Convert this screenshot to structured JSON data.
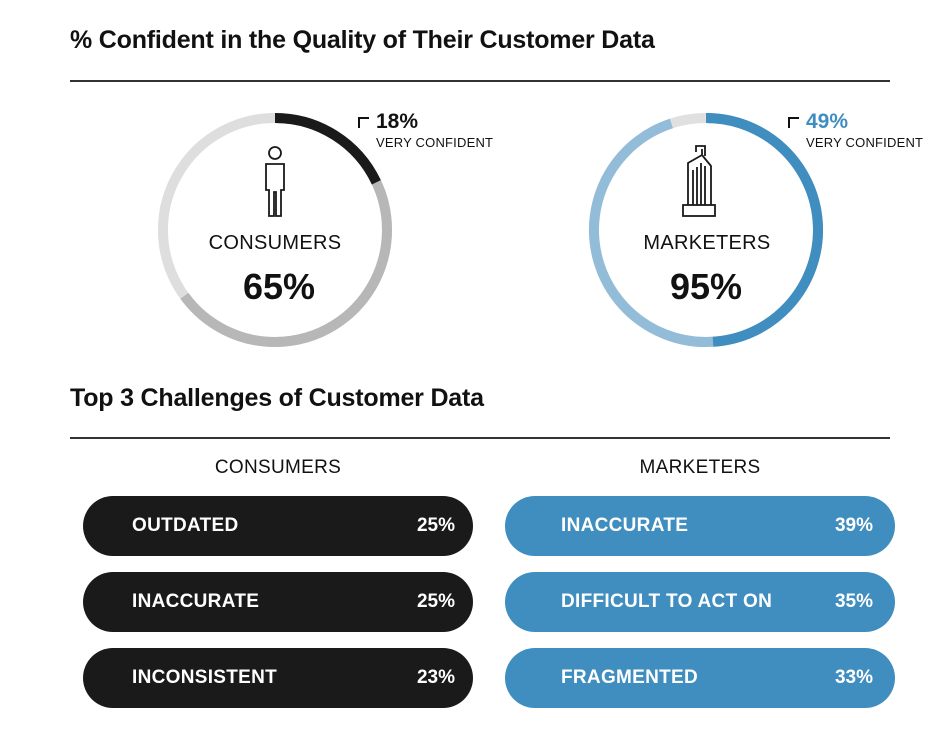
{
  "title": "% Confident in the Quality of Their Customer Data",
  "subtitle": "Top 3 Challenges of Customer Data",
  "colors": {
    "consumer_track": "#dedede",
    "consumer_fill": "#b7b7b7",
    "consumer_very": "#1a1a1a",
    "marketer_track": "#e0e0e0",
    "marketer_fill": "#93bcd8",
    "marketer_very": "#3f8ebf",
    "dark_pill": "#1a1a1a",
    "blue_pill": "#3f8ebf"
  },
  "chart_data": [
    {
      "type": "pie",
      "name": "CONSUMERS",
      "confident_label": "65%",
      "confident": 65,
      "very_confident": 18,
      "very_confident_label": "18%",
      "very_confident_text": "VERY CONFIDENT",
      "icon": "person-icon"
    },
    {
      "type": "pie",
      "name": "MARKETERS",
      "confident_label": "95%",
      "confident": 95,
      "very_confident": 49,
      "very_confident_label": "49%",
      "very_confident_text": "VERY CONFIDENT",
      "icon": "building-icon"
    },
    {
      "type": "table",
      "title": "Top 3 Challenges of Customer Data",
      "groups": [
        {
          "name": "CONSUMERS",
          "rows": [
            {
              "label": "OUTDATED",
              "value": 25,
              "value_label": "25%"
            },
            {
              "label": "INACCURATE",
              "value": 25,
              "value_label": "25%"
            },
            {
              "label": "INCONSISTENT",
              "value": 23,
              "value_label": "23%"
            }
          ]
        },
        {
          "name": "MARKETERS",
          "rows": [
            {
              "label": "INACCURATE",
              "value": 39,
              "value_label": "39%"
            },
            {
              "label": "DIFFICULT TO ACT ON",
              "value": 35,
              "value_label": "35%"
            },
            {
              "label": "FRAGMENTED",
              "value": 33,
              "value_label": "33%"
            }
          ]
        }
      ]
    }
  ]
}
